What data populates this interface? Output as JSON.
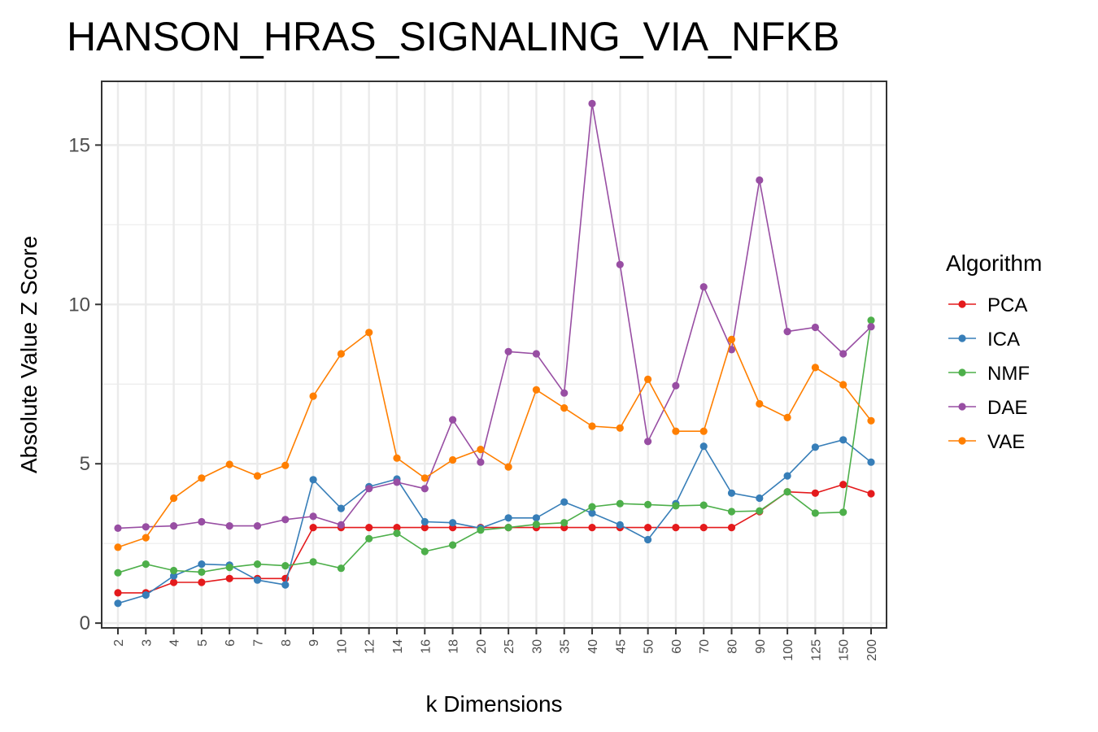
{
  "chart_data": {
    "type": "line",
    "title": "HANSON_HRAS_SIGNALING_VIA_NFKB",
    "xlabel": "k Dimensions",
    "ylabel": "Absolute Value Z Score",
    "categories": [
      "2",
      "3",
      "4",
      "5",
      "6",
      "7",
      "8",
      "9",
      "10",
      "12",
      "14",
      "16",
      "18",
      "20",
      "25",
      "30",
      "35",
      "40",
      "45",
      "50",
      "60",
      "70",
      "80",
      "90",
      "100",
      "125",
      "150",
      "200"
    ],
    "yticks": [
      "0",
      "5",
      "10",
      "15"
    ],
    "ylim": [
      -0.15,
      17.0
    ],
    "grid": true,
    "legend": {
      "title": "Algorithm",
      "position": "right"
    },
    "series": [
      {
        "name": "PCA",
        "color": "#E41A1C",
        "values": [
          0.95,
          0.95,
          1.28,
          1.28,
          1.4,
          1.4,
          1.4,
          3.0,
          3.0,
          3.0,
          3.0,
          3.0,
          3.0,
          3.0,
          3.0,
          3.0,
          3.0,
          3.0,
          3.0,
          3.0,
          3.0,
          3.0,
          3.0,
          3.5,
          4.12,
          4.08,
          4.35,
          4.06
        ]
      },
      {
        "name": "ICA",
        "color": "#377EB8",
        "values": [
          0.62,
          0.88,
          1.48,
          1.85,
          1.82,
          1.35,
          1.2,
          4.5,
          3.6,
          4.28,
          4.52,
          3.18,
          3.15,
          2.98,
          3.3,
          3.3,
          3.8,
          3.45,
          3.08,
          2.62,
          3.75,
          5.55,
          4.08,
          3.92,
          4.62,
          5.52,
          5.75,
          5.05
        ]
      },
      {
        "name": "NMF",
        "color": "#4DAF4A",
        "values": [
          1.58,
          1.85,
          1.65,
          1.6,
          1.75,
          1.85,
          1.8,
          1.92,
          1.72,
          2.65,
          2.82,
          2.25,
          2.45,
          2.92,
          3.0,
          3.1,
          3.15,
          3.65,
          3.75,
          3.72,
          3.68,
          3.7,
          3.5,
          3.52,
          4.12,
          3.45,
          3.48,
          9.5
        ]
      },
      {
        "name": "DAE",
        "color": "#984EA3",
        "values": [
          2.98,
          3.02,
          3.05,
          3.18,
          3.05,
          3.05,
          3.25,
          3.35,
          3.08,
          4.22,
          4.42,
          4.22,
          6.38,
          5.05,
          8.52,
          8.45,
          7.22,
          16.3,
          11.25,
          5.7,
          7.45,
          10.55,
          8.58,
          13.9,
          9.15,
          9.28,
          8.45,
          9.3
        ]
      },
      {
        "name": "VAE",
        "color": "#FF7F00",
        "values": [
          2.38,
          2.68,
          3.92,
          4.55,
          4.98,
          4.62,
          4.95,
          7.12,
          8.45,
          9.12,
          5.18,
          4.55,
          5.12,
          5.45,
          4.9,
          7.32,
          6.75,
          6.18,
          6.12,
          7.65,
          6.02,
          6.02,
          8.9,
          6.88,
          6.45,
          8.02,
          7.48,
          6.35
        ]
      }
    ]
  }
}
